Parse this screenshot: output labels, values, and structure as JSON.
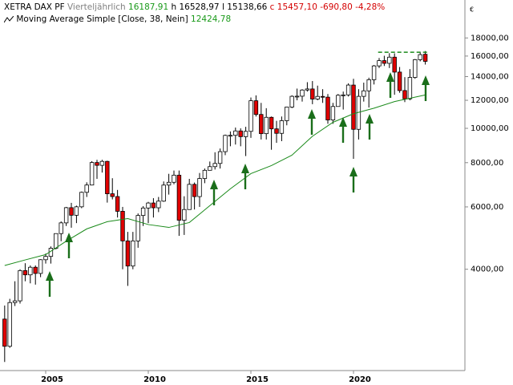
{
  "chart_data": {
    "type": "candlestick",
    "header": {
      "name": "XETRA DAX PF",
      "interval": "Vierteljährlich",
      "open_label": "16187,91",
      "high_prefix": "h",
      "high_label": "16528,97",
      "low_prefix": "l",
      "low_label": "15138,66",
      "close_prefix": "c",
      "close_label": "15457,10",
      "change_label": "-690,80",
      "change_pct_label": "-4,28%"
    },
    "y_unit": "€",
    "x": [
      2003,
      2003.25,
      2003.5,
      2003.75,
      2004,
      2004.25,
      2004.5,
      2004.75,
      2005,
      2005.25,
      2005.5,
      2005.75,
      2006,
      2006.25,
      2006.5,
      2006.75,
      2007,
      2007.25,
      2007.5,
      2007.75,
      2008,
      2008.25,
      2008.5,
      2008.75,
      2009,
      2009.25,
      2009.5,
      2009.75,
      2010,
      2010.25,
      2010.5,
      2010.75,
      2011,
      2011.25,
      2011.5,
      2011.75,
      2012,
      2012.25,
      2012.5,
      2012.75,
      2013,
      2013.25,
      2013.5,
      2013.75,
      2014,
      2014.25,
      2014.5,
      2014.75,
      2015,
      2015.25,
      2015.5,
      2015.75,
      2016,
      2016.25,
      2016.5,
      2016.75,
      2017,
      2017.25,
      2017.5,
      2017.75,
      2018,
      2018.25,
      2018.5,
      2018.75,
      2019,
      2019.25,
      2019.5,
      2019.75,
      2020,
      2020.25,
      2020.5,
      2020.75,
      2021,
      2021.25,
      2021.5,
      2021.75,
      2022,
      2022.25,
      2022.5,
      2022.75,
      2023,
      2023.25,
      2023.5
    ],
    "open": [
      2893,
      2424,
      3221,
      3257,
      3965,
      3857,
      4052,
      3893,
      4256,
      4349,
      4586,
      5044,
      5408,
      5970,
      5683,
      6004,
      6597,
      6917,
      8007,
      7862,
      8067,
      6535,
      6418,
      5831,
      4810,
      4085,
      4809,
      5675,
      5957,
      6154,
      5966,
      6229,
      6914,
      7041,
      7376,
      5502,
      5898,
      6947,
      6416,
      7216,
      7612,
      7795,
      7959,
      8594,
      9552,
      9556,
      9833,
      9474,
      9806,
      11966,
      10945,
      9660,
      10743,
      9966,
      9680,
      10511,
      11481,
      12313,
      12325,
      12829,
      12918,
      12097,
      12306,
      12247,
      10559,
      11526,
      12399,
      12428,
      13249,
      9936,
      12311,
      12761,
      13719,
      15008,
      15531,
      15261,
      15885,
      14415,
      12784,
      12114,
      13924,
      15629,
      16187.91
    ],
    "high": [
      3160,
      3300,
      3700,
      4000,
      4160,
      4100,
      4100,
      4270,
      4430,
      4640,
      5050,
      5460,
      6000,
      6160,
      6050,
      6630,
      7040,
      8080,
      8150,
      8150,
      8100,
      7230,
      6700,
      6000,
      5100,
      5100,
      5750,
      6030,
      6200,
      6350,
      6400,
      7080,
      7440,
      7600,
      7600,
      6430,
      7200,
      7030,
      7480,
      7700,
      8060,
      8560,
      8770,
      9600,
      9800,
      10050,
      10000,
      10100,
      12220,
      12390,
      11800,
      11400,
      10800,
      10500,
      10800,
      11500,
      12400,
      12950,
      12900,
      13500,
      13600,
      13200,
      12900,
      12500,
      11800,
      12500,
      12700,
      13400,
      13800,
      12900,
      13460,
      13900,
      15100,
      15800,
      16030,
      16300,
      16285,
      14900,
      13950,
      14700,
      15700,
      16430,
      16528.97
    ],
    "low": [
      2189,
      2400,
      3150,
      3200,
      3700,
      3650,
      3620,
      3800,
      4150,
      4150,
      4550,
      4800,
      5300,
      5240,
      5400,
      5950,
      6400,
      6900,
      7200,
      7500,
      6170,
      6300,
      5600,
      4000,
      3590,
      4000,
      4600,
      5300,
      5400,
      5600,
      5800,
      6200,
      6500,
      6950,
      4970,
      5000,
      5900,
      5900,
      6000,
      7000,
      7600,
      7650,
      7700,
      8400,
      8900,
      9000,
      8900,
      8350,
      9400,
      10800,
      9300,
      9300,
      8700,
      9100,
      9200,
      10200,
      11400,
      12000,
      11900,
      12700,
      11700,
      12000,
      11800,
      10300,
      10300,
      11600,
      11300,
      12300,
      8200,
      9300,
      11900,
      11450,
      13300,
      14800,
      15000,
      14800,
      12440,
      12600,
      11860,
      12000,
      13800,
      15460,
      15138.66
    ],
    "close": [
      2424,
      3221,
      3257,
      3965,
      3857,
      4052,
      3893,
      4256,
      4349,
      4586,
      5044,
      5408,
      5970,
      5683,
      6004,
      6597,
      6917,
      8007,
      7862,
      8067,
      6535,
      6418,
      5831,
      4810,
      4085,
      4809,
      5675,
      5957,
      6154,
      5966,
      6229,
      6914,
      7041,
      7376,
      5502,
      5898,
      6947,
      6416,
      7216,
      7612,
      7795,
      7959,
      8594,
      9552,
      9556,
      9833,
      9474,
      9806,
      11966,
      10945,
      9660,
      10743,
      9966,
      9680,
      10511,
      11481,
      12313,
      12325,
      12829,
      12918,
      12097,
      12306,
      12247,
      10559,
      11526,
      12399,
      12428,
      13249,
      9936,
      12311,
      12761,
      13719,
      15008,
      15531,
      15261,
      15885,
      14415,
      12784,
      12114,
      13924,
      15629,
      16148,
      15457.1
    ],
    "up_color": "#ffffff",
    "down_color": "#e00000",
    "outline_color": "#000000",
    "overlays": [
      {
        "type": "line",
        "name": "Moving Average Simple",
        "params": "[Close, 38, Nein]",
        "last_label": "12424,78",
        "color": "#1a8a1a",
        "x": [
          2003,
          2004,
          2005,
          2006,
          2007,
          2008,
          2009,
          2010,
          2011,
          2012,
          2013,
          2014,
          2015,
          2016,
          2017,
          2018,
          2019,
          2020,
          2021,
          2022,
          2023,
          2023.5
        ],
        "values": [
          4100,
          4250,
          4400,
          4800,
          5200,
          5450,
          5560,
          5350,
          5250,
          5420,
          6050,
          6750,
          7450,
          7850,
          8400,
          9500,
          10400,
          11000,
          11400,
          11900,
          12250,
          12424.78
        ]
      }
    ],
    "hlines": [
      {
        "value": 16400,
        "x": [
          2021.2,
          2023.6
        ],
        "color": "#1a8a1a",
        "dashed": true
      }
    ],
    "xlim": [
      2002.89,
      2025.43
    ],
    "xticks": [
      2005,
      2010,
      2015,
      2020
    ],
    "ylim": [
      2070,
      19700
    ],
    "log_scale": true,
    "yticks": [
      {
        "value": 4000,
        "label": "4000,00"
      },
      {
        "value": 6000,
        "label": "6000,00"
      },
      {
        "value": 8000,
        "label": "8000,00"
      },
      {
        "value": 10000,
        "label": "10000,00"
      },
      {
        "value": 12000,
        "label": "12000,00"
      },
      {
        "value": 14000,
        "label": "14000,00"
      },
      {
        "value": 16000,
        "label": "16000,00"
      },
      {
        "value": 18000,
        "label": "18000,00"
      }
    ]
  }
}
